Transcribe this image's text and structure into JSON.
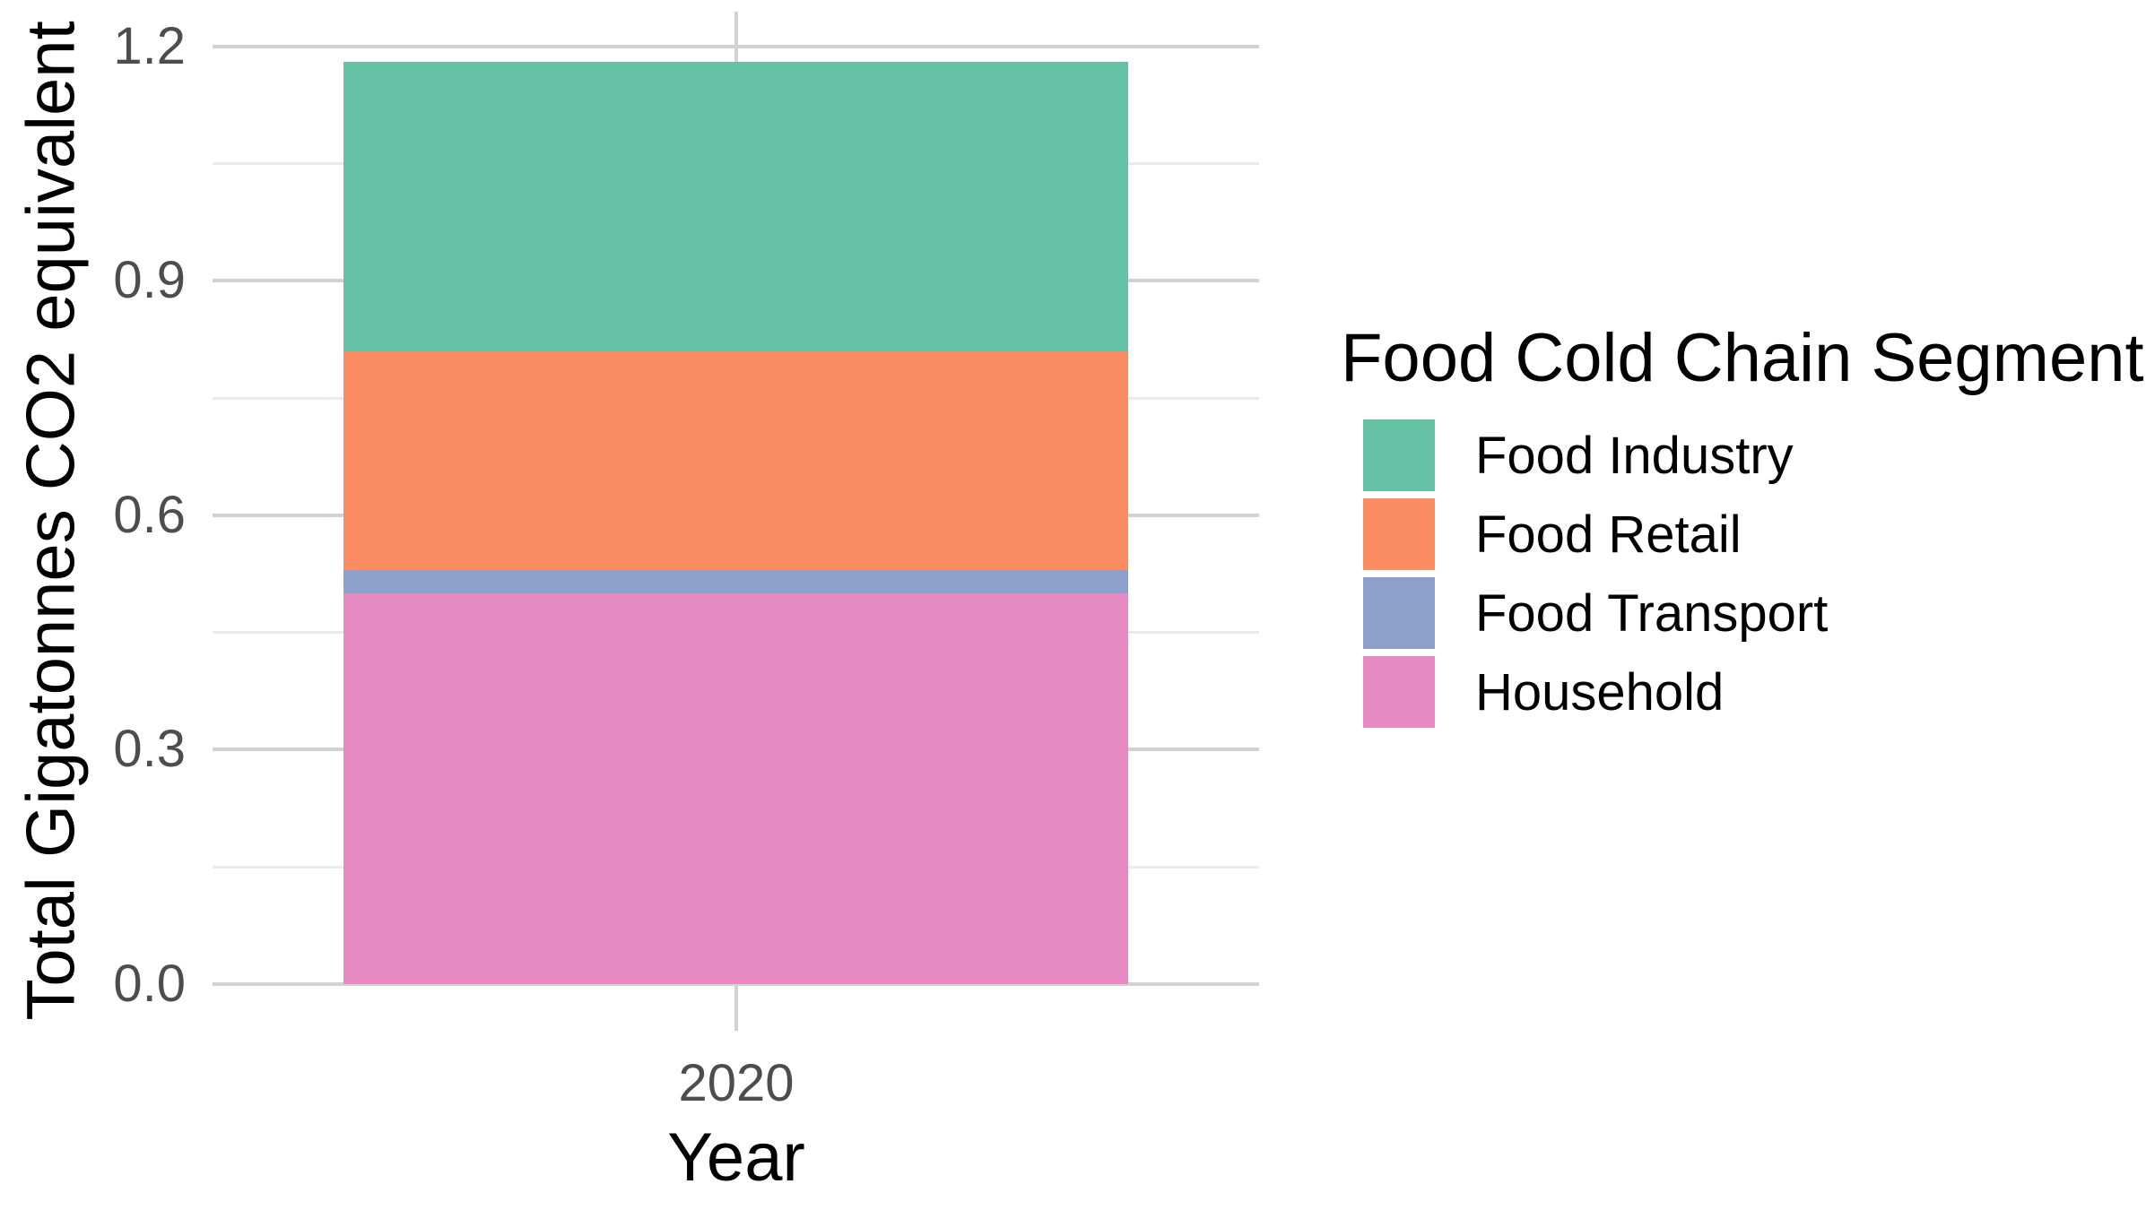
{
  "chart_data": {
    "type": "bar",
    "stacked": true,
    "title": "",
    "xlabel": "Year",
    "ylabel": "Total Gigatonnes CO2 equivalent",
    "categories": [
      "2020"
    ],
    "series": [
      {
        "name": "Food Industry",
        "values": [
          0.37
        ],
        "color": "#66C2A5"
      },
      {
        "name": "Food Retail",
        "values": [
          0.28
        ],
        "color": "#FC8D62"
      },
      {
        "name": "Food Transport",
        "values": [
          0.03
        ],
        "color": "#8DA0CB"
      },
      {
        "name": "Household",
        "values": [
          0.5
        ],
        "color": "#E78AC3"
      }
    ],
    "stack_total": 1.18,
    "stack_bottom_to_top": [
      "Household",
      "Food Transport",
      "Food Retail",
      "Food Industry"
    ],
    "ylim": [
      0.0,
      1.244
    ],
    "yticks": [
      0.0,
      0.3,
      0.6,
      0.9,
      1.2
    ],
    "ytick_labels": [
      "0.0",
      "0.3",
      "0.6",
      "0.9",
      "1.2"
    ],
    "yticks_minor": [
      0.15,
      0.45,
      0.75,
      1.05
    ],
    "grid": true,
    "legend": {
      "title": "Food Cold Chain Segment",
      "position": "right",
      "items": [
        {
          "label": "Food Industry",
          "color": "#66C2A5"
        },
        {
          "label": "Food Retail",
          "color": "#FC8D62"
        },
        {
          "label": "Food Transport",
          "color": "#8DA0CB"
        },
        {
          "label": "Household",
          "color": "#E78AC3"
        }
      ]
    }
  },
  "colors": {
    "background": "#FFFFFF",
    "grid_major": "#D2D2D2",
    "grid_minor": "#EBEBEB",
    "axis_text": "#4D4D4D",
    "title_text": "#000000"
  }
}
